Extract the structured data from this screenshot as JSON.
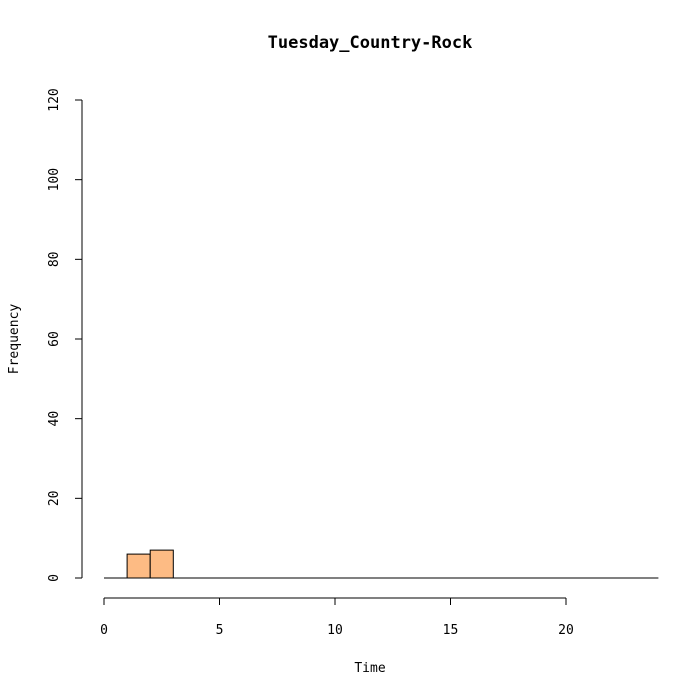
{
  "chart_data": {
    "type": "bar",
    "title": "Tuesday_Country-Rock",
    "xlabel": "Time",
    "ylabel": "Frequency",
    "xlim": [
      0,
      24
    ],
    "ylim": [
      0,
      120
    ],
    "x_ticks": [
      0,
      5,
      10,
      15,
      20
    ],
    "y_ticks": [
      0,
      20,
      40,
      60,
      80,
      100,
      120
    ],
    "bins": [
      {
        "start": 0,
        "end": 1,
        "count": 0
      },
      {
        "start": 1,
        "end": 2,
        "count": 6
      },
      {
        "start": 2,
        "end": 3,
        "count": 7
      },
      {
        "start": 3,
        "end": 4,
        "count": 0
      },
      {
        "start": 4,
        "end": 5,
        "count": 0
      },
      {
        "start": 5,
        "end": 6,
        "count": 0
      },
      {
        "start": 6,
        "end": 7,
        "count": 0
      },
      {
        "start": 7,
        "end": 8,
        "count": 0
      },
      {
        "start": 8,
        "end": 9,
        "count": 0
      },
      {
        "start": 9,
        "end": 10,
        "count": 0
      },
      {
        "start": 10,
        "end": 11,
        "count": 0
      },
      {
        "start": 11,
        "end": 12,
        "count": 0
      },
      {
        "start": 12,
        "end": 13,
        "count": 0
      },
      {
        "start": 13,
        "end": 14,
        "count": 0
      },
      {
        "start": 14,
        "end": 15,
        "count": 0
      },
      {
        "start": 15,
        "end": 16,
        "count": 0
      },
      {
        "start": 16,
        "end": 17,
        "count": 0
      },
      {
        "start": 17,
        "end": 18,
        "count": 0
      },
      {
        "start": 18,
        "end": 19,
        "count": 0
      },
      {
        "start": 19,
        "end": 20,
        "count": 0
      },
      {
        "start": 20,
        "end": 21,
        "count": 0
      },
      {
        "start": 21,
        "end": 22,
        "count": 0
      },
      {
        "start": 22,
        "end": 23,
        "count": 0
      },
      {
        "start": 23,
        "end": 24,
        "count": 0
      }
    ],
    "bar_color": "#fdbb84",
    "grid": false
  }
}
